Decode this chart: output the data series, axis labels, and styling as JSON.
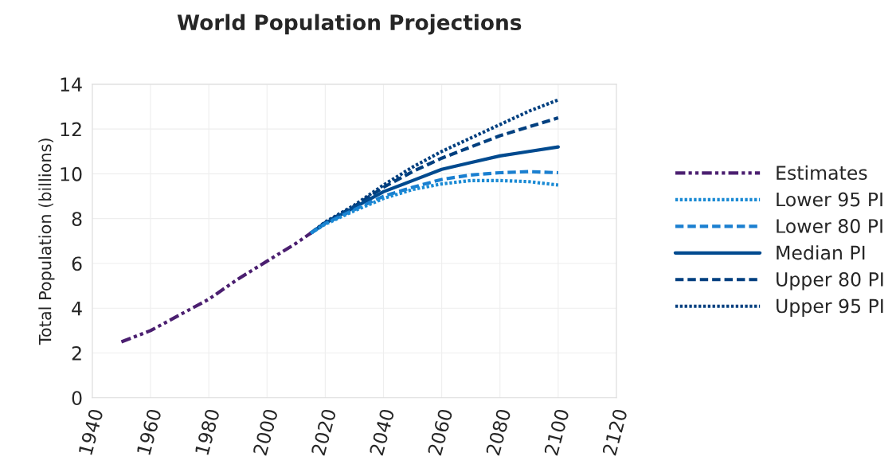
{
  "chart_data": {
    "type": "line",
    "title": "World Population Projections",
    "ylabel": "Total Population (billions)",
    "xlim": [
      1940,
      2120
    ],
    "xticks": [
      1940,
      1960,
      1980,
      2000,
      2020,
      2040,
      2060,
      2080,
      2100,
      2120
    ],
    "ylim": [
      0,
      14
    ],
    "yticks": [
      0,
      2,
      4,
      6,
      8,
      10,
      12,
      14
    ],
    "grid": true,
    "legend": "right",
    "series": [
      {
        "name": "Estimates",
        "color": "#4b1f70",
        "line_style": "dashdotdot",
        "x": [
          1950,
          1960,
          1970,
          1980,
          1990,
          2000,
          2010,
          2015
        ],
        "values": [
          2.5,
          3.0,
          3.7,
          4.4,
          5.3,
          6.1,
          6.9,
          7.35
        ]
      },
      {
        "name": "Lower 95 PI",
        "color": "#1a8ad4",
        "line_style": "dotted",
        "x": [
          2015,
          2020,
          2030,
          2040,
          2050,
          2060,
          2070,
          2080,
          2090,
          2100
        ],
        "values": [
          7.35,
          7.75,
          8.35,
          8.9,
          9.3,
          9.55,
          9.7,
          9.7,
          9.65,
          9.5
        ]
      },
      {
        "name": "Lower 80 PI",
        "color": "#1a7fd0",
        "line_style": "dashed",
        "x": [
          2015,
          2020,
          2030,
          2040,
          2050,
          2060,
          2070,
          2080,
          2090,
          2100
        ],
        "values": [
          7.35,
          7.78,
          8.4,
          9.0,
          9.4,
          9.75,
          9.95,
          10.05,
          10.1,
          10.05
        ]
      },
      {
        "name": "Median PI",
        "color": "#004a8f",
        "line_style": "solid",
        "x": [
          2015,
          2020,
          2030,
          2040,
          2050,
          2060,
          2070,
          2080,
          2090,
          2100
        ],
        "values": [
          7.35,
          7.8,
          8.5,
          9.2,
          9.7,
          10.2,
          10.5,
          10.8,
          11.0,
          11.2
        ]
      },
      {
        "name": "Upper 80 PI",
        "color": "#003f7f",
        "line_style": "dashed",
        "x": [
          2015,
          2020,
          2030,
          2040,
          2050,
          2060,
          2070,
          2080,
          2090,
          2100
        ],
        "values": [
          7.35,
          7.82,
          8.55,
          9.4,
          10.1,
          10.7,
          11.2,
          11.7,
          12.1,
          12.5
        ]
      },
      {
        "name": "Upper 95 PI",
        "color": "#003f7f",
        "line_style": "dotted",
        "x": [
          2015,
          2020,
          2030,
          2040,
          2050,
          2060,
          2070,
          2080,
          2090,
          2100
        ],
        "values": [
          7.35,
          7.85,
          8.6,
          9.5,
          10.3,
          11.0,
          11.6,
          12.2,
          12.8,
          13.3
        ]
      }
    ]
  }
}
